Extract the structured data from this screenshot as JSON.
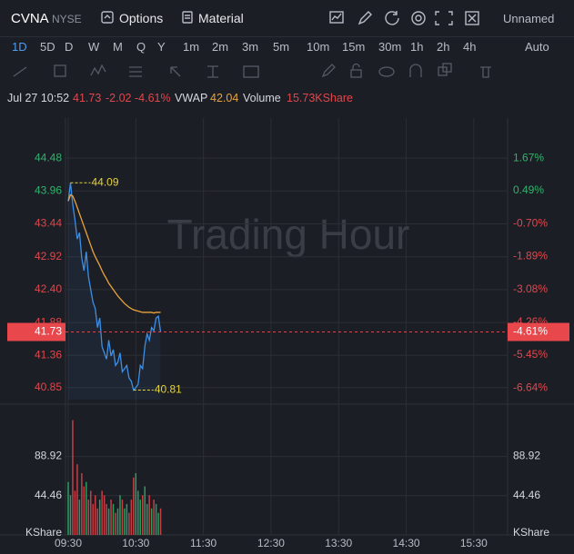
{
  "header": {
    "symbol": "CVNA",
    "exchange": "NYSE",
    "menu": [
      "Options",
      "Material"
    ],
    "layout": "Unnamed"
  },
  "periods": [
    "1D",
    "5D",
    "D",
    "W",
    "M",
    "Q",
    "Y",
    "1m",
    "2m",
    "3m",
    "5m",
    "10m",
    "15m",
    "30m",
    "1h",
    "2h",
    "4h"
  ],
  "scale_mode": "Auto",
  "info": {
    "time": "Jul 27 10:52",
    "price": 41.73,
    "change": -2.02,
    "change_pct": {
      "value": -4.61,
      "label": "-4.61%"
    },
    "vwap_label": "VWAP",
    "vwap": 42.04,
    "volume_label": "Volume",
    "volume": "15.73KShare"
  },
  "chart_data": {
    "type": "line",
    "watermark": "Trading Hour",
    "x": [
      0,
      2,
      4,
      6,
      8,
      10,
      12,
      14,
      16,
      18,
      20,
      22,
      24,
      26,
      28,
      30,
      32,
      34,
      36,
      38,
      40,
      42,
      44,
      46,
      48,
      50,
      52,
      54,
      56,
      58,
      60,
      62,
      64,
      66,
      68,
      70,
      72,
      74,
      76,
      78,
      80,
      82
    ],
    "xlim": [
      0,
      390
    ],
    "xticks": [
      {
        "value": 0,
        "label": "09:30"
      },
      {
        "value": 60,
        "label": "10:30"
      },
      {
        "value": 120,
        "label": "11:30"
      },
      {
        "value": 180,
        "label": "12:30"
      },
      {
        "value": 240,
        "label": "13:30"
      },
      {
        "value": 300,
        "label": "14:30"
      },
      {
        "value": 360,
        "label": "15:30"
      }
    ],
    "ylim": [
      40.66,
      44.97
    ],
    "yticks": [
      44.48,
      43.96,
      43.44,
      42.92,
      {
        "value": 42.4,
        "label": "42.40"
      },
      41.88,
      41.36,
      40.85
    ],
    "y2lim": [
      -7.06,
      2.79
    ],
    "y2ticks": [
      {
        "value": 1.67,
        "label": "1.67%"
      },
      {
        "value": 0.49,
        "label": "0.49%"
      },
      {
        "value": -0.7,
        "label": "-0.70%"
      },
      {
        "value": -1.89,
        "label": "-1.89%"
      },
      {
        "value": -3.08,
        "label": "-3.08%"
      },
      {
        "value": -4.26,
        "label": "-4.26%"
      },
      {
        "value": -5.45,
        "label": "-5.45%"
      },
      {
        "value": -6.64,
        "label": "-6.64%"
      }
    ],
    "series": [
      {
        "color": "#3d8fe6",
        "values": [
          43.8,
          44.09,
          43.75,
          43.5,
          43.2,
          43.3,
          42.9,
          42.7,
          43.0,
          42.6,
          42.4,
          42.2,
          42.1,
          41.8,
          41.95,
          41.5,
          41.4,
          41.3,
          41.6,
          41.35,
          41.45,
          41.2,
          41.25,
          41.4,
          41.1,
          41.15,
          41.2,
          41.0,
          40.95,
          40.81,
          40.85,
          40.9,
          41.2,
          41.15,
          41.5,
          41.7,
          41.6,
          41.8,
          41.75,
          41.95,
          41.98,
          41.73
        ]
      },
      {
        "color": "#e8a33d",
        "values": [
          43.8,
          43.9,
          43.88,
          43.8,
          43.7,
          43.6,
          43.5,
          43.4,
          43.3,
          43.2,
          43.1,
          43.0,
          42.92,
          42.85,
          42.78,
          42.7,
          42.63,
          42.57,
          42.5,
          42.45,
          42.4,
          42.35,
          42.3,
          42.26,
          42.22,
          42.18,
          42.15,
          42.12,
          42.1,
          42.08,
          42.07,
          42.06,
          42.05,
          42.04,
          42.04,
          42.04,
          42.04,
          42.04,
          42.03,
          42.04,
          42.04,
          42.04
        ]
      }
    ],
    "annotations": [
      {
        "x": 2,
        "value": 44.09
      },
      {
        "x": 58,
        "value": 40.81
      }
    ],
    "last_price": 41.73,
    "last_change_pct": {
      "value": -4.61,
      "label": "-4.61%"
    },
    "volume": {
      "unit": "KShare",
      "ylim": [
        0,
        143
      ],
      "yticks": [
        88.92,
        44.46
      ],
      "up_color": "#2fb36b",
      "down_color": "#e0474c",
      "values": [
        60,
        45,
        130,
        50,
        80,
        40,
        70,
        55,
        60,
        40,
        50,
        35,
        45,
        30,
        40,
        50,
        45,
        35,
        30,
        40,
        35,
        25,
        30,
        45,
        40,
        30,
        35,
        25,
        40,
        65,
        70,
        50,
        40,
        45,
        55,
        35,
        45,
        30,
        40,
        35,
        25,
        30
      ]
    }
  }
}
